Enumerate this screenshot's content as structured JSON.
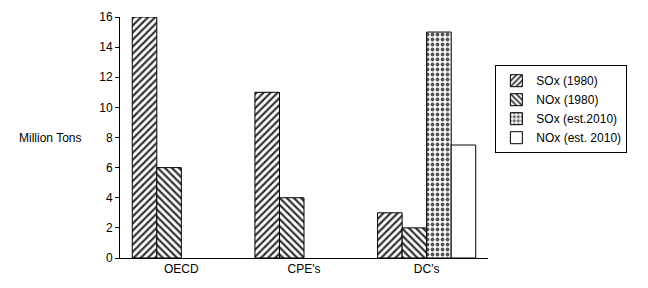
{
  "chart_data": {
    "type": "bar",
    "y_label": "Million Tons",
    "categories": [
      "OECD",
      "CPE's",
      "DC's"
    ],
    "series": [
      {
        "name": "SOx (1980)",
        "color": "#333333",
        "values": [
          16,
          11,
          3
        ]
      },
      {
        "name": "NOx (1980)",
        "color": "#333333",
        "values": [
          6,
          4,
          2
        ]
      },
      {
        "name": "SOx (est.2010)",
        "color": "#555555",
        "values": [
          null,
          null,
          15
        ]
      },
      {
        "name": "NOx (est. 2010)",
        "color": "#ffffff",
        "values": [
          null,
          null,
          7.5
        ]
      }
    ],
    "ylim": [
      0,
      16
    ],
    "yticks": [
      0,
      2,
      4,
      6,
      8,
      10,
      12,
      14,
      16
    ],
    "grid": false,
    "legend": "right"
  }
}
